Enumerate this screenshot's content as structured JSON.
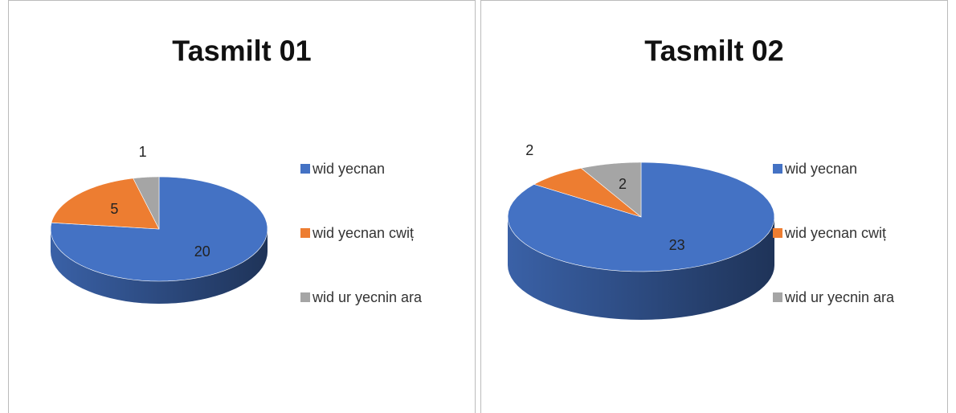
{
  "chart_data": [
    {
      "type": "pie",
      "title": "Tasmilt 01",
      "categories": [
        "wid yecnan",
        "wid yecnan cwiț",
        "wid ur yecnin ara"
      ],
      "values": [
        20,
        5,
        1
      ],
      "colors": [
        "#4472c4",
        "#ed7d31",
        "#a5a5a5"
      ],
      "legend": "right"
    },
    {
      "type": "pie",
      "title": "Tasmilt 02",
      "categories": [
        "wid yecnan",
        "wid yecnan cwiț",
        "wid ur yecnin ara"
      ],
      "values": [
        23,
        2,
        2
      ],
      "colors": [
        "#4472c4",
        "#ed7d31",
        "#a5a5a5"
      ],
      "legend": "right"
    }
  ]
}
